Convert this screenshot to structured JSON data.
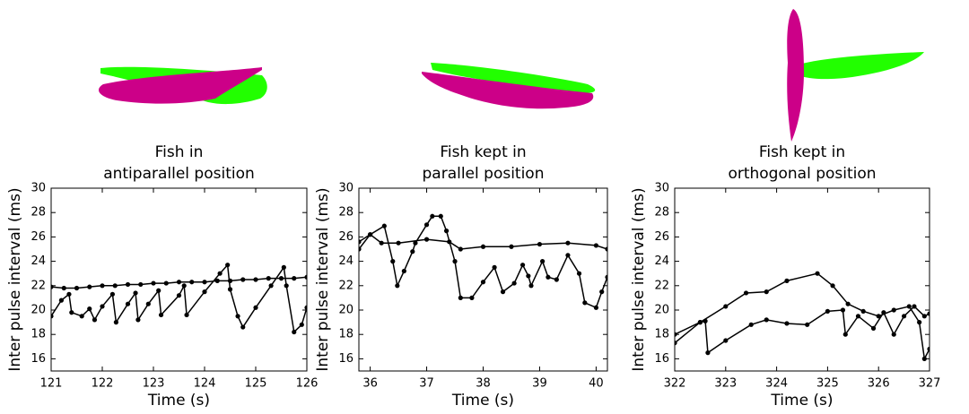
{
  "chart_data": [
    {
      "type": "line",
      "title": [
        "Fish in",
        "antiparallel position"
      ],
      "xlabel": "Time (s)",
      "ylabel": "Inter pulse interval (ms)",
      "xlim": [
        121,
        126
      ],
      "xticks": [
        121,
        122,
        123,
        124,
        125,
        126
      ],
      "ylim": [
        15,
        30
      ],
      "yticks": [
        16,
        18,
        20,
        22,
        24,
        26,
        28,
        30
      ],
      "series": [
        {
          "color": "#000000",
          "x": [
            121,
            121.25,
            121.5,
            121.75,
            122,
            122.25,
            122.5,
            122.75,
            123,
            123.25,
            123.5,
            123.75,
            124,
            124.25,
            124.5,
            124.75,
            125,
            125.25,
            125.5,
            125.75,
            126
          ],
          "values": [
            21.9,
            21.8,
            21.8,
            21.9,
            22.0,
            22.0,
            22.1,
            22.1,
            22.2,
            22.2,
            22.3,
            22.3,
            22.3,
            22.4,
            22.4,
            22.5,
            22.5,
            22.6,
            22.6,
            22.6,
            22.7
          ]
        },
        {
          "color": "#000000",
          "x": [
            121,
            121.2,
            121.35,
            121.4,
            121.6,
            121.75,
            121.85,
            122,
            122.2,
            122.27,
            122.5,
            122.65,
            122.7,
            122.9,
            123.1,
            123.15,
            123.5,
            123.6,
            123.65,
            124,
            124.3,
            124.45,
            124.5,
            124.65,
            124.75,
            125,
            125.3,
            125.55,
            125.6,
            125.75,
            125.9,
            126
          ],
          "values": [
            19.5,
            20.8,
            21.3,
            19.8,
            19.5,
            20.1,
            19.2,
            20.3,
            21.3,
            19.0,
            20.5,
            21.4,
            19.2,
            20.5,
            21.6,
            19.6,
            21.2,
            22.0,
            19.6,
            21.5,
            23.0,
            23.7,
            21.7,
            19.5,
            18.6,
            20.2,
            22.0,
            23.5,
            22.0,
            18.2,
            18.8,
            20.2
          ]
        }
      ]
    },
    {
      "type": "line",
      "title": [
        "Fish kept in",
        "parallel position"
      ],
      "xlabel": "Time (s)",
      "ylabel": "Inter pulse interval (ms)",
      "xlim": [
        35.8,
        40.2
      ],
      "xticks": [
        36,
        37,
        38,
        39,
        40
      ],
      "ylim": [
        15,
        30
      ],
      "yticks": [
        16,
        18,
        20,
        22,
        24,
        26,
        28,
        30
      ],
      "series": [
        {
          "color": "#000000",
          "x": [
            35.8,
            36.0,
            36.2,
            36.5,
            37.0,
            37.4,
            37.6,
            38.0,
            38.5,
            39.0,
            39.5,
            40.0,
            40.2
          ],
          "values": [
            25.6,
            26.2,
            25.5,
            25.5,
            25.8,
            25.6,
            25.0,
            25.2,
            25.2,
            25.4,
            25.5,
            25.3,
            25.0
          ]
        },
        {
          "color": "#000000",
          "x": [
            35.8,
            36.0,
            36.25,
            36.4,
            36.48,
            36.6,
            36.75,
            36.8,
            37.0,
            37.1,
            37.25,
            37.35,
            37.5,
            37.6,
            37.8,
            38.0,
            38.2,
            38.35,
            38.55,
            38.7,
            38.8,
            38.85,
            39.05,
            39.15,
            39.3,
            39.5,
            39.7,
            39.8,
            40.0,
            40.1,
            40.2
          ],
          "values": [
            25.0,
            26.2,
            26.9,
            24.0,
            22.0,
            23.2,
            24.8,
            25.5,
            27.0,
            27.7,
            27.7,
            26.5,
            24.0,
            21.0,
            21.0,
            22.3,
            23.5,
            21.5,
            22.2,
            23.7,
            22.8,
            22.0,
            24.0,
            22.7,
            22.5,
            24.5,
            23.0,
            20.6,
            20.2,
            21.5,
            22.7
          ]
        }
      ]
    },
    {
      "type": "line",
      "title": [
        "Fish kept in",
        "orthogonal position"
      ],
      "xlabel": "Time (s)",
      "ylabel": "Inter pulse interval (ms)",
      "xlim": [
        322,
        327
      ],
      "xticks": [
        322,
        323,
        324,
        325,
        326,
        327
      ],
      "ylim": [
        15,
        30
      ],
      "yticks": [
        16,
        18,
        20,
        22,
        24,
        26,
        28,
        30
      ],
      "series": [
        {
          "color": "#000000",
          "x": [
            322.0,
            322.5,
            323.0,
            323.4,
            323.8,
            324.2,
            324.8,
            325.1,
            325.4,
            325.7,
            326.0,
            326.3,
            326.6,
            326.8,
            326.9,
            327.0
          ],
          "values": [
            17.3,
            19.0,
            20.3,
            21.4,
            21.5,
            22.4,
            23.0,
            22.0,
            20.5,
            19.9,
            19.5,
            20.0,
            20.3,
            19.0,
            16.0,
            16.8
          ]
        },
        {
          "color": "#000000",
          "x": [
            322.0,
            322.5,
            322.6,
            322.65,
            323.0,
            323.5,
            323.8,
            324.2,
            324.6,
            325.0,
            325.3,
            325.35,
            325.6,
            325.9,
            326.1,
            326.3,
            326.5,
            326.7,
            326.9,
            327.0
          ],
          "values": [
            18.0,
            19.0,
            19.1,
            16.5,
            17.5,
            18.8,
            19.2,
            18.9,
            18.8,
            19.9,
            20.0,
            18.0,
            19.5,
            18.5,
            19.8,
            18.0,
            19.5,
            20.3,
            19.5,
            19.7
          ]
        }
      ]
    }
  ]
}
